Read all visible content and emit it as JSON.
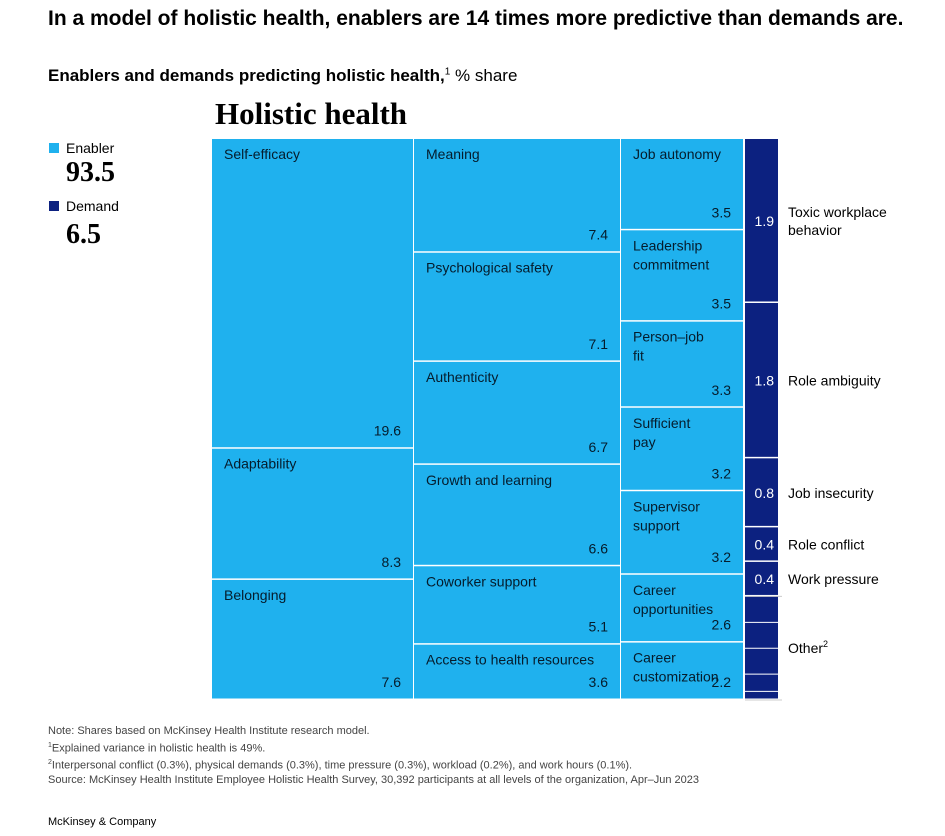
{
  "title": "In a model of holistic health, enablers are 14 times more predictive than demands are.",
  "subtitle": {
    "bold": "Enablers and demands predicting holistic health,",
    "sup": "1",
    "rest": " % share"
  },
  "chart_heading": "Holistic health",
  "legend": {
    "enabler": {
      "label": "Enabler",
      "value": "93.5",
      "color": "#1fb1ee"
    },
    "demand": {
      "label": "Demand",
      "value": "6.5",
      "color": "#0c2180"
    }
  },
  "chart_data": {
    "type": "treemap",
    "title": "Holistic health",
    "units": "% share",
    "series": [
      {
        "name": "Enabler",
        "total": 93.5,
        "color": "#1fb1ee",
        "columns": [
          [
            {
              "label": "Self-efficacy",
              "value": 19.6
            },
            {
              "label": "Adaptability",
              "value": 8.3
            },
            {
              "label": "Belonging",
              "value": 7.6
            }
          ],
          [
            {
              "label": "Meaning",
              "value": 7.4
            },
            {
              "label": "Psychological safety",
              "value": 7.1
            },
            {
              "label": "Authenticity",
              "value": 6.7
            },
            {
              "label": "Growth and learning",
              "value": 6.6
            },
            {
              "label": "Coworker support",
              "value": 5.1
            },
            {
              "label": "Access to health resources",
              "value": 3.6
            }
          ],
          [
            {
              "label": "Job autonomy",
              "value": 3.5
            },
            {
              "label": "Leadership commitment",
              "value": 3.5
            },
            {
              "label": "Person–job fit",
              "value": 3.3
            },
            {
              "label": "Sufficient pay",
              "value": 3.2
            },
            {
              "label": "Supervisor support",
              "value": 3.2
            },
            {
              "label": "Career opportunities",
              "value": 2.6
            },
            {
              "label": "Career customization",
              "value": 2.2
            }
          ]
        ]
      },
      {
        "name": "Demand",
        "total": 6.5,
        "color": "#0c2180",
        "items": [
          {
            "label": "Toxic workplace behavior",
            "value": 1.9
          },
          {
            "label": "Role ambiguity",
            "value": 1.8
          },
          {
            "label": "Job insecurity",
            "value": 0.8
          },
          {
            "label": "Role conflict",
            "value": 0.4
          },
          {
            "label": "Work pressure",
            "value": 0.4
          },
          {
            "label": "Other",
            "value": 1.2,
            "sup": "2",
            "value_shown": false,
            "sub_values": [
              0.3,
              0.3,
              0.3,
              0.2,
              0.1
            ]
          }
        ]
      }
    ]
  },
  "notes": {
    "note": "Note: Shares based on McKinsey Health Institute research model.",
    "fn1_sup": "1",
    "fn1": "Explained variance in holistic health is 49%.",
    "fn2_sup": "2",
    "fn2": "Interpersonal conflict (0.3%), physical demands (0.3%), time pressure (0.3%), workload (0.2%), and work hours (0.1%).",
    "source": "Source: McKinsey Health Institute Employee Holistic Health Survey, 30,392 participants at all levels of the organization, Apr–Jun 2023"
  },
  "footer": "McKinsey & Company"
}
